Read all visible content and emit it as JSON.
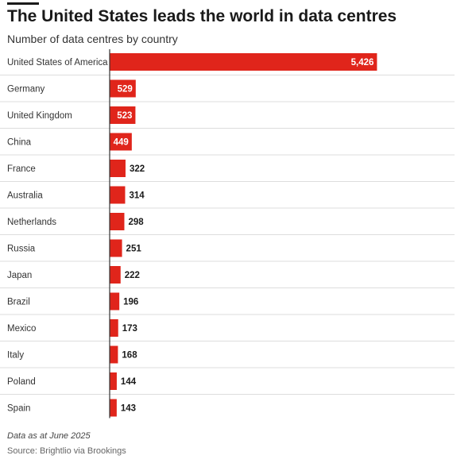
{
  "header": {
    "title": "The United States leads the world in data centres",
    "subtitle": "Number of data centres by country"
  },
  "footer": {
    "note": "Data as at June 2025",
    "source": "Source: Brightlio via Brookings"
  },
  "colors": {
    "bar": "#e0251b",
    "separator": "#dddddd",
    "axis": "#333333"
  },
  "chart_data": {
    "type": "bar",
    "orientation": "horizontal",
    "title": "The United States leads the world in data centres",
    "subtitle": "Number of data centres by country",
    "categories": [
      "United States of America",
      "Germany",
      "United Kingdom",
      "China",
      "France",
      "Australia",
      "Netherlands",
      "Russia",
      "Japan",
      "Brazil",
      "Mexico",
      "Italy",
      "Poland",
      "Spain"
    ],
    "values": [
      5426,
      529,
      523,
      449,
      322,
      314,
      298,
      251,
      222,
      196,
      173,
      168,
      144,
      143
    ],
    "value_labels": [
      "5,426",
      "529",
      "523",
      "449",
      "322",
      "314",
      "298",
      "251",
      "222",
      "196",
      "173",
      "168",
      "144",
      "143"
    ],
    "xlabel": "",
    "ylabel": "",
    "xlim": [
      0,
      7000
    ],
    "grid": false,
    "legend": "none"
  }
}
